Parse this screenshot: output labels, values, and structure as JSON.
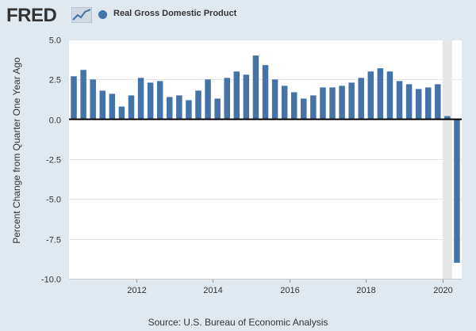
{
  "header": {
    "logo_text": "FRED",
    "logo_icon": "fred-chart-line-icon"
  },
  "colors": {
    "background": "#e1e9f0",
    "plot_background": "#ffffff",
    "bar": "#4572a7",
    "recession_shading": "#e6e6e6",
    "zero_line": "#000000"
  },
  "source": "Source: U.S. Bureau of Economic Analysis",
  "chart_data": {
    "type": "bar",
    "title": "",
    "xlabel": "",
    "ylabel": "Percent Change from Quarter One Year Ago",
    "legend": [
      "Real Gross Domestic Product"
    ],
    "legend_position": "top-left",
    "ylim": [
      -10,
      5
    ],
    "yticks": [
      5,
      2.5,
      0,
      -2.5,
      -5,
      -7.5,
      -10
    ],
    "ytick_labels": [
      "5.0",
      "2.5",
      "0.0",
      "-2.5",
      "-5.0",
      "-7.5",
      "-10.0"
    ],
    "xticks": [
      2012,
      2014,
      2016,
      2018,
      2020
    ],
    "xlim": [
      2010.25,
      2020.5
    ],
    "recession_shading": [
      [
        2020.0,
        2020.25
      ]
    ],
    "grid": "horizontal",
    "series": [
      {
        "name": "Real Gross Domestic Product",
        "x": [
          2010.375,
          2010.625,
          2010.875,
          2011.125,
          2011.375,
          2011.625,
          2011.875,
          2012.125,
          2012.375,
          2012.625,
          2012.875,
          2013.125,
          2013.375,
          2013.625,
          2013.875,
          2014.125,
          2014.375,
          2014.625,
          2014.875,
          2015.125,
          2015.375,
          2015.625,
          2015.875,
          2016.125,
          2016.375,
          2016.625,
          2016.875,
          2017.125,
          2017.375,
          2017.625,
          2017.875,
          2018.125,
          2018.375,
          2018.625,
          2018.875,
          2019.125,
          2019.375,
          2019.625,
          2019.875,
          2020.125,
          2020.375
        ],
        "values": [
          2.7,
          3.1,
          2.5,
          1.8,
          1.6,
          0.8,
          1.5,
          2.6,
          2.3,
          2.4,
          1.4,
          1.5,
          1.2,
          1.8,
          2.5,
          1.3,
          2.6,
          3.0,
          2.8,
          4.0,
          3.4,
          2.5,
          2.1,
          1.7,
          1.3,
          1.5,
          2.0,
          2.0,
          2.1,
          2.3,
          2.6,
          3.0,
          3.2,
          3.0,
          2.4,
          2.2,
          1.9,
          2.0,
          2.2,
          0.2,
          -9.0
        ]
      }
    ]
  }
}
